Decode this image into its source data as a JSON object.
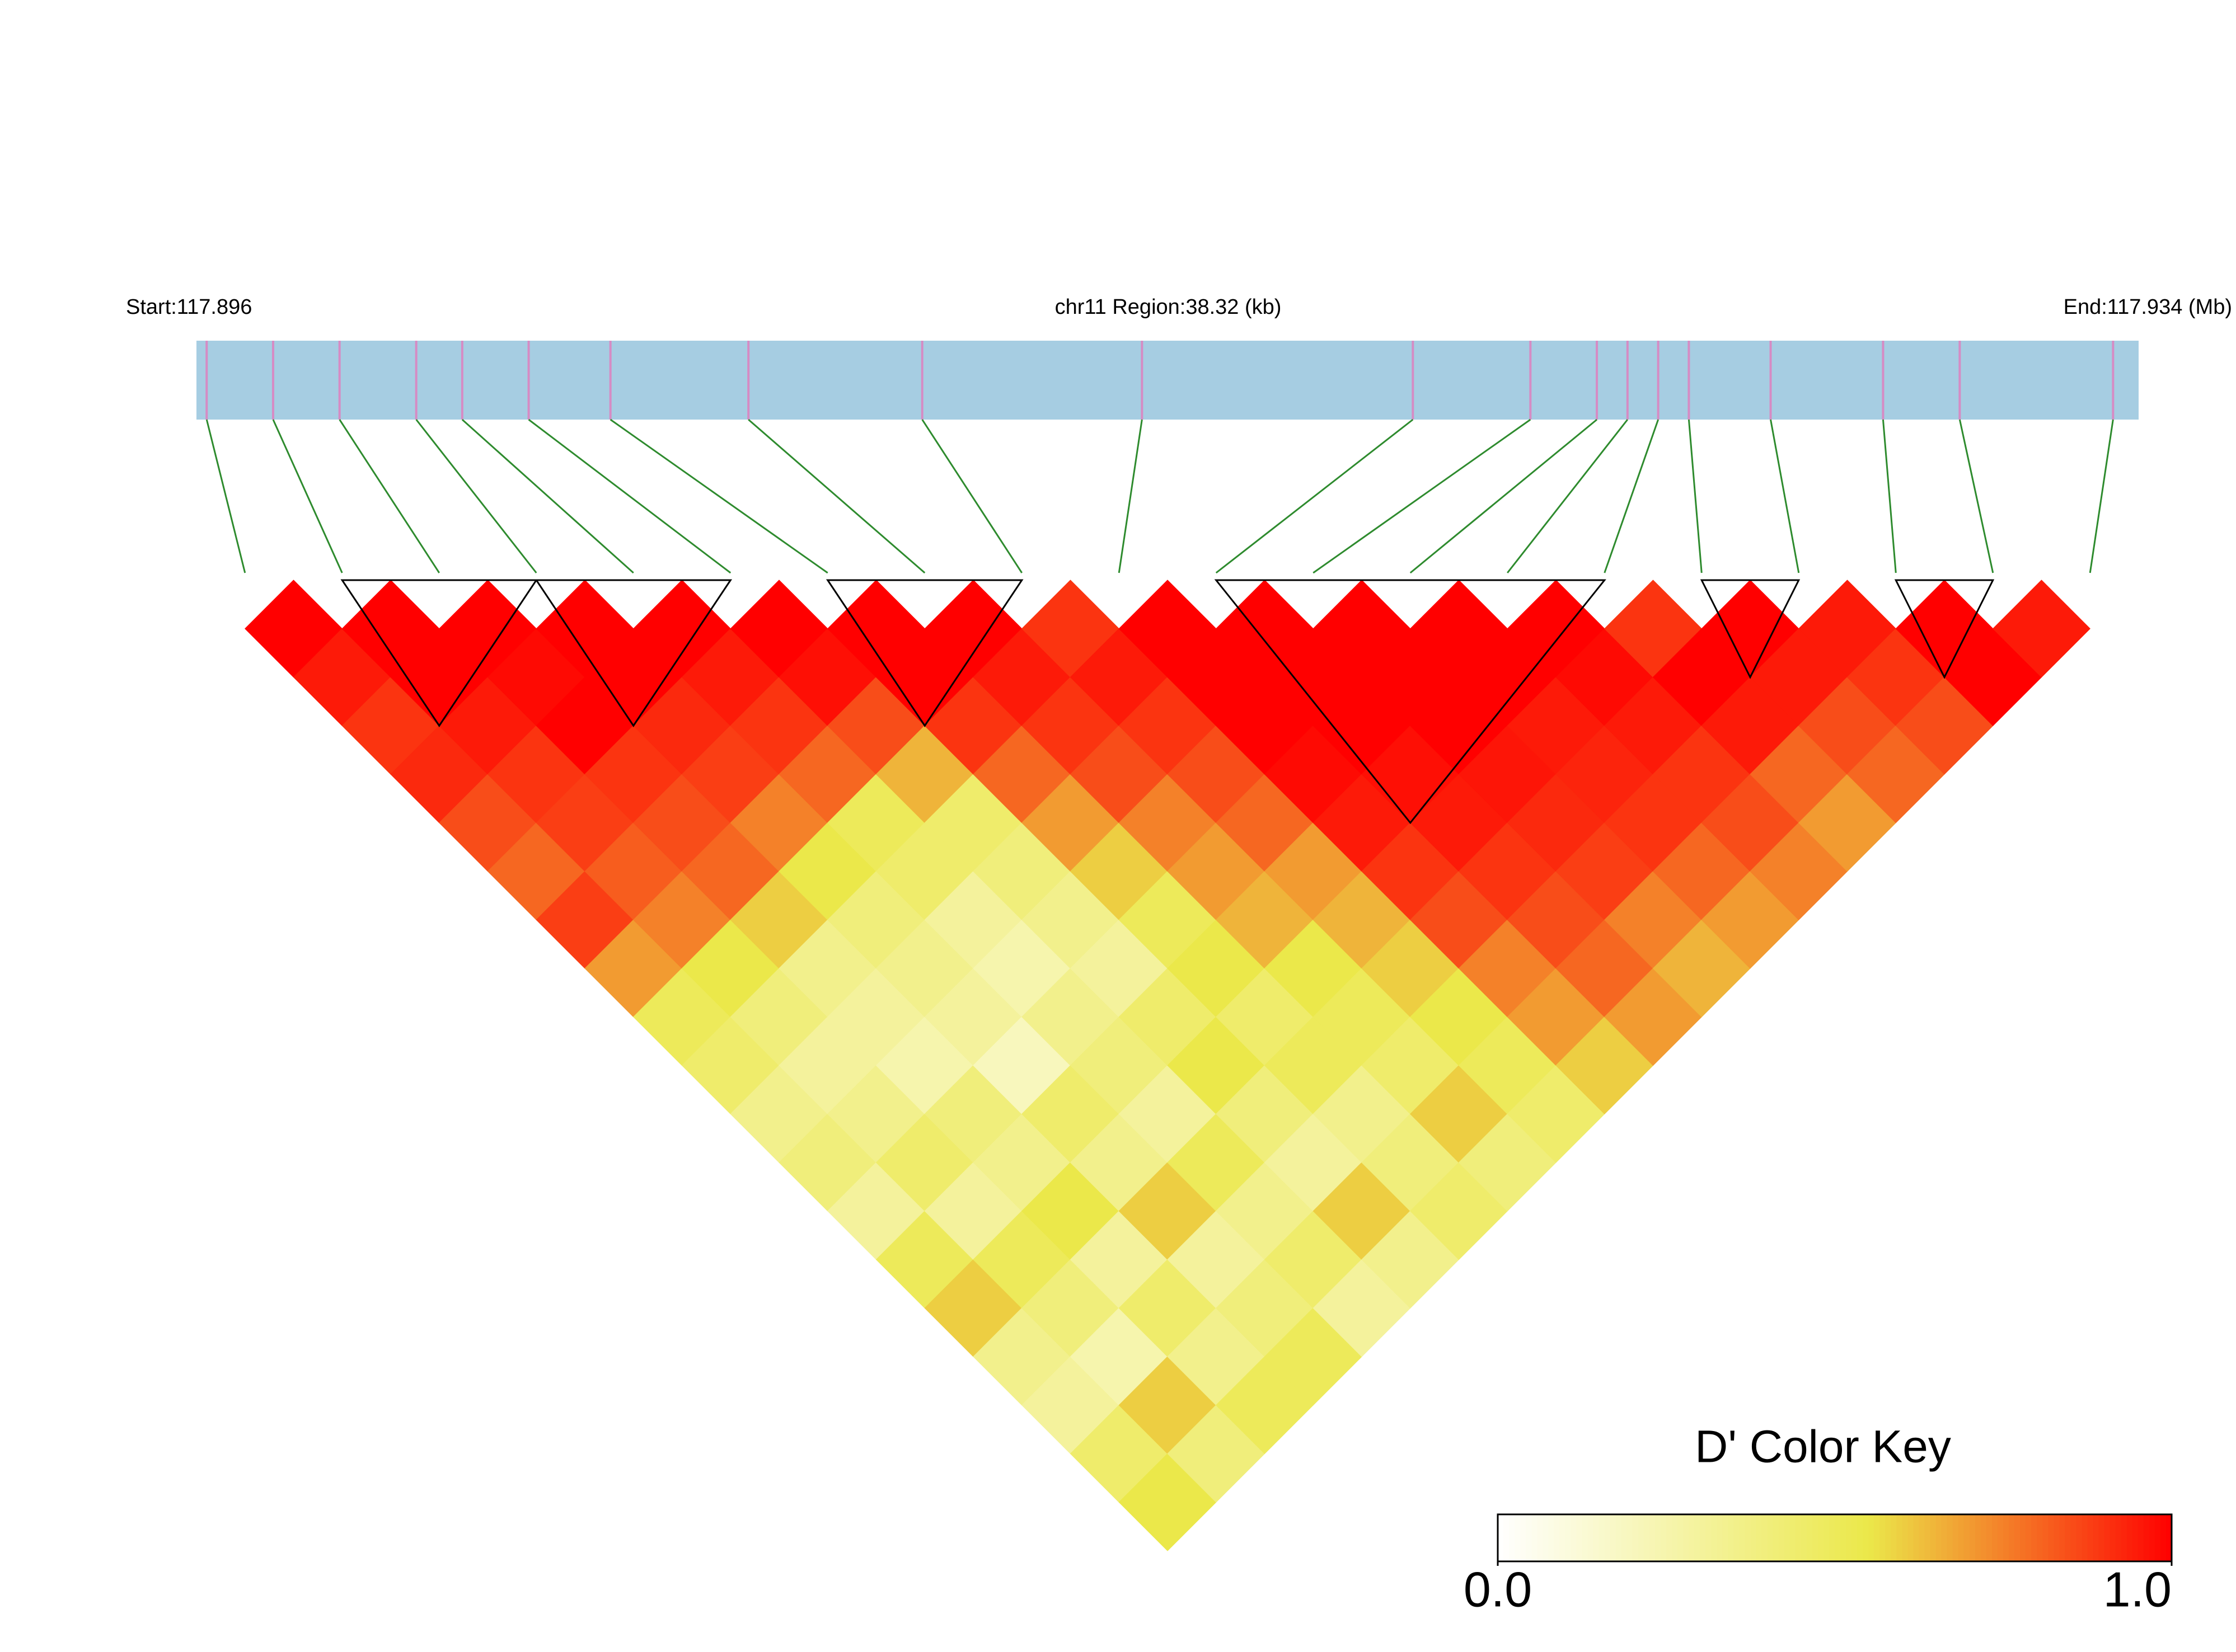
{
  "chart_data": {
    "type": "ld-heatmap",
    "start_label": "Start:117.896",
    "title": "chr11 Region:38.32 (kb)",
    "end_label": "End:117.934 (Mb)",
    "xlim": [
      117.896,
      117.934
    ],
    "snp_positions": [
      117.8962,
      117.8975,
      117.8988,
      117.9003,
      117.9012,
      117.9025,
      117.9041,
      117.9068,
      117.9102,
      117.9145,
      117.9198,
      117.9221,
      117.9234,
      117.924,
      117.9246,
      117.9252,
      117.9268,
      117.929,
      117.9305,
      117.9335
    ],
    "track_color": "#a6cde2",
    "snp_line_color": "#d68bc4",
    "link_color": "#2e8b2e",
    "ld": [
      [
        1,
        0.95,
        0.9,
        0.92,
        0.85,
        0.8,
        0.88,
        0.7,
        0.5,
        0.45,
        0.35,
        0.4,
        0.3,
        0.5,
        0.6,
        0.35,
        0.3,
        0.45,
        0.55
      ],
      [
        1,
        1,
        0.95,
        0.9,
        0.88,
        0.82,
        0.75,
        0.55,
        0.4,
        0.3,
        0.35,
        0.45,
        0.3,
        0.5,
        0.4,
        0.25,
        0.6,
        0.4
      ],
      [
        1,
        0.98,
        1,
        0.9,
        0.85,
        0.8,
        0.6,
        0.35,
        0.3,
        0.25,
        0.4,
        0.35,
        0.55,
        0.3,
        0.45,
        0.35,
        0.5
      ],
      [
        1,
        1,
        0.92,
        0.88,
        0.75,
        0.55,
        0.4,
        0.35,
        0.3,
        0.2,
        0.45,
        0.35,
        0.6,
        0.3,
        0.4,
        0.5
      ],
      [
        1,
        0.95,
        0.9,
        0.8,
        0.5,
        0.45,
        0.3,
        0.25,
        0.35,
        0.4,
        0.3,
        0.5,
        0.35,
        0.45,
        0.3
      ],
      [
        1,
        0.97,
        0.85,
        0.65,
        0.45,
        0.4,
        0.35,
        0.3,
        0.45,
        0.55,
        0.4,
        0.3,
        0.6,
        0.35
      ],
      [
        1,
        1,
        0.9,
        0.8,
        0.7,
        0.6,
        0.5,
        0.55,
        0.45,
        0.5,
        0.35,
        0.4,
        0.45
      ],
      [
        1,
        0.95,
        0.9,
        0.85,
        0.75,
        0.7,
        0.65,
        0.55,
        0.5,
        0.45,
        0.6,
        0.4
      ],
      [
        0.9,
        0.95,
        0.9,
        0.85,
        0.8,
        0.7,
        0.65,
        0.6,
        0.55,
        0.5,
        0.45
      ],
      [
        1,
        1,
        1,
        0.98,
        0.95,
        0.9,
        0.85,
        0.75,
        0.7,
        0.6
      ],
      [
        1,
        1,
        1,
        0.97,
        0.95,
        0.9,
        0.85,
        0.8,
        0.7
      ],
      [
        1,
        1,
        1,
        0.96,
        0.92,
        0.88,
        0.75,
        0.65
      ],
      [
        1,
        1,
        0.95,
        0.93,
        0.9,
        0.8,
        0.7
      ],
      [
        1,
        0.98,
        0.95,
        0.9,
        0.85,
        0.75
      ],
      [
        0.9,
        1,
        0.95,
        0.8,
        0.7
      ],
      [
        1,
        0.95,
        0.85,
        0.8
      ],
      [
        0.95,
        0.9,
        0.85
      ],
      [
        1,
        1
      ],
      [
        0.95
      ]
    ],
    "blocks": [
      [
        1,
        3
      ],
      [
        3,
        5
      ],
      [
        6,
        8
      ],
      [
        10,
        14
      ],
      [
        15,
        16
      ],
      [
        17,
        18
      ]
    ],
    "color_key": {
      "title": "D' Color Key",
      "ticks": [
        {
          "value": 0,
          "label": "0.0"
        },
        {
          "value": 1,
          "label": "1.0"
        }
      ],
      "color_stops": [
        [
          0,
          "#ffffff"
        ],
        [
          0.55,
          "#ebe84a"
        ],
        [
          1,
          "#ff0000"
        ]
      ]
    }
  }
}
